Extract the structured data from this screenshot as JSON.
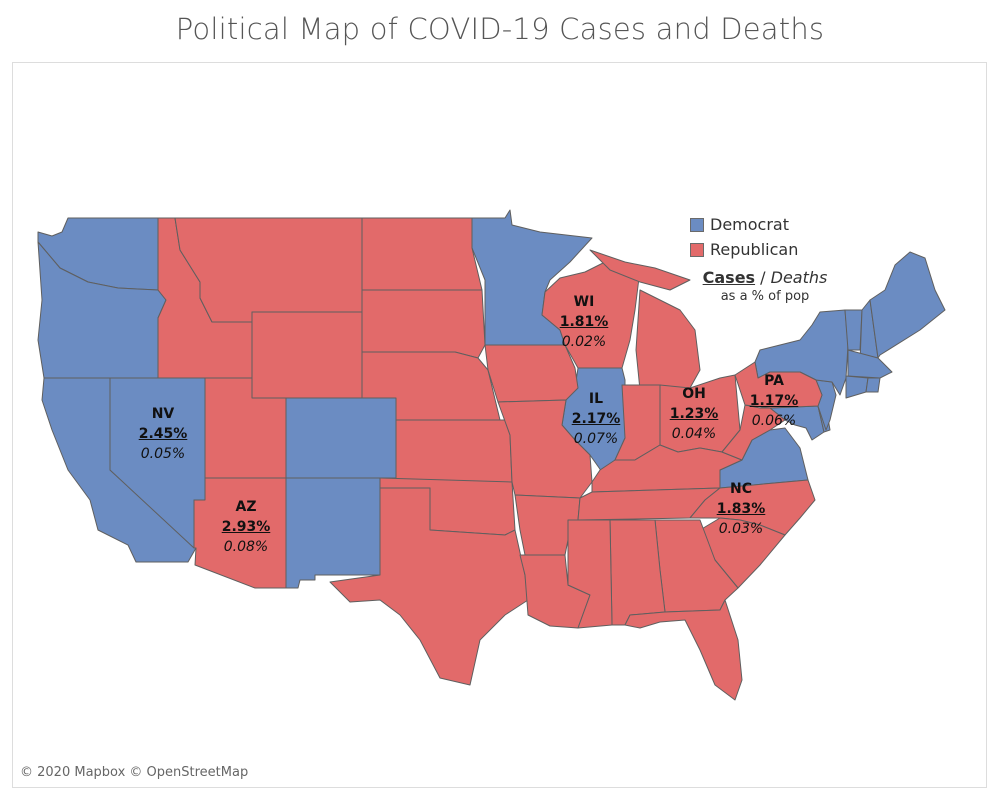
{
  "title": "Political Map of COVID-19 Cases and Deaths",
  "colors": {
    "democrat": "#6b8cc2",
    "republican": "#e26a6a"
  },
  "legend": {
    "items": [
      {
        "label": "Democrat",
        "party": "democrat"
      },
      {
        "label": "Republican",
        "party": "republican"
      }
    ],
    "key_cases": "Cases",
    "key_sep": "/",
    "key_deaths": "Deaths",
    "key_note": "as a % of pop"
  },
  "states": [
    {
      "abbr": "NV",
      "cases": "2.45%",
      "deaths": "0.05%",
      "party": "democrat"
    },
    {
      "abbr": "AZ",
      "cases": "2.93%",
      "deaths": "0.08%",
      "party": "republican"
    },
    {
      "abbr": "WI",
      "cases": "1.81%",
      "deaths": "0.02%",
      "party": "republican"
    },
    {
      "abbr": "IL",
      "cases": "2.17%",
      "deaths": "0.07%",
      "party": "democrat"
    },
    {
      "abbr": "OH",
      "cases": "1.23%",
      "deaths": "0.04%",
      "party": "republican"
    },
    {
      "abbr": "PA",
      "cases": "1.17%",
      "deaths": "0.06%",
      "party": "republican"
    },
    {
      "abbr": "NC",
      "cases": "1.83%",
      "deaths": "0.03%",
      "party": "republican"
    }
  ],
  "credit": "© 2020 Mapbox © OpenStreetMap"
}
